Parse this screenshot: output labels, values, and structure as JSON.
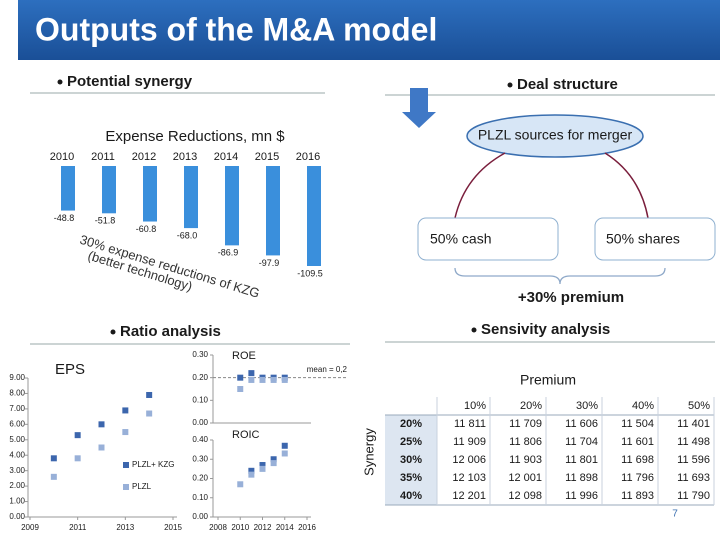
{
  "title": "Outputs of the M&A model",
  "sections": {
    "synergy": "Potential synergy",
    "deal": "Deal structure",
    "ratio": "Ratio analysis",
    "sensitivity": "Sensivity analysis"
  },
  "chart_data": [
    {
      "type": "bar",
      "title": "Expense Reductions, mn $",
      "categories": [
        "2010",
        "2011",
        "2012",
        "2013",
        "2014",
        "2015",
        "2016"
      ],
      "values": [
        -48.8,
        -51.8,
        -60.8,
        -68.0,
        -86.9,
        -97.9,
        -109.5
      ],
      "value_labels": [
        "-48.8",
        "-51.8",
        "-60.8",
        "-68.0",
        "-86.9",
        "-97.9",
        "-109.5"
      ],
      "color": "#3a8fdc",
      "annotations": [
        "30% expense reductions of KZG",
        "(better technology)"
      ]
    },
    {
      "type": "scatter",
      "title": "EPS",
      "xlim": [
        2009,
        2015
      ],
      "xticks": [
        2009,
        2011,
        2013,
        2015
      ],
      "ylim": [
        0,
        9
      ],
      "yticks": [
        {
          "value": 0,
          "label": "0.00"
        },
        {
          "value": 1,
          "label": "1.00"
        },
        {
          "value": 2,
          "label": "2.00"
        },
        {
          "value": 3,
          "label": "3.00"
        },
        {
          "value": 4,
          "label": "4.00"
        },
        {
          "value": 5,
          "label": "5.00"
        },
        {
          "value": 6,
          "label": "6.00"
        },
        {
          "value": 7,
          "label": "7.00"
        },
        {
          "value": 8,
          "label": "8.00"
        },
        {
          "value": 9,
          "label": "9.00"
        }
      ],
      "legend": "right",
      "series": [
        {
          "name": "PLZL+ KZG",
          "color": "#3c66ad",
          "x": [
            2010,
            2011,
            2012,
            2013,
            2014
          ],
          "values": [
            3.8,
            5.3,
            6.0,
            6.9,
            7.9
          ]
        },
        {
          "name": "PLZL",
          "color": "#98b0d8",
          "x": [
            2010,
            2011,
            2012,
            2013,
            2014
          ],
          "values": [
            2.6,
            3.8,
            4.5,
            5.5,
            6.7
          ]
        }
      ]
    },
    {
      "type": "scatter",
      "title": "ROE",
      "xlim": [
        2008,
        2016
      ],
      "ylim": [
        0,
        0.3
      ],
      "yticks": [
        {
          "value": 0,
          "label": "0.00"
        },
        {
          "value": 0.1,
          "label": "0.10"
        },
        {
          "value": 0.2,
          "label": "0.20"
        },
        {
          "value": 0.3,
          "label": "0.30"
        }
      ],
      "mean_line": {
        "value": 0.2,
        "label": "mean = 0,2"
      },
      "series": [
        {
          "color": "#3c66ad",
          "x": [
            2010,
            2011,
            2012,
            2013,
            2014
          ],
          "values": [
            0.2,
            0.22,
            0.2,
            0.2,
            0.2
          ]
        },
        {
          "color": "#98b0d8",
          "x": [
            2010,
            2011,
            2012,
            2013,
            2014
          ],
          "values": [
            0.15,
            0.19,
            0.19,
            0.19,
            0.19
          ]
        }
      ]
    },
    {
      "type": "scatter",
      "title": "ROIC",
      "xlim": [
        2008,
        2016
      ],
      "xticks": [
        2008,
        2010,
        2012,
        2014,
        2016
      ],
      "ylim": [
        0,
        0.4
      ],
      "yticks": [
        {
          "value": 0,
          "label": "0.00"
        },
        {
          "value": 0.1,
          "label": "0.10"
        },
        {
          "value": 0.2,
          "label": "0.20"
        },
        {
          "value": 0.3,
          "label": "0.30"
        },
        {
          "value": 0.4,
          "label": "0.40"
        }
      ],
      "series": [
        {
          "color": "#3c66ad",
          "x": [
            2011,
            2012,
            2013,
            2014
          ],
          "values": [
            0.24,
            0.27,
            0.3,
            0.37
          ]
        },
        {
          "color": "#98b0d8",
          "x": [
            2010,
            2011,
            2012,
            2013,
            2014
          ],
          "values": [
            0.17,
            0.22,
            0.25,
            0.28,
            0.33
          ]
        }
      ]
    }
  ],
  "diagram": {
    "source": "PLZL sources for merger",
    "cash": "50% cash",
    "shares": "50% shares",
    "premium": "+30% premium"
  },
  "table": {
    "column_title": "Premium",
    "row_title": "Synergy",
    "columns": [
      "10%",
      "20%",
      "30%",
      "40%",
      "50%"
    ],
    "rows": [
      {
        "label": "20%",
        "cells": [
          "11 811",
          "11 709",
          "11 606",
          "11 504",
          "11 401"
        ]
      },
      {
        "label": "25%",
        "cells": [
          "11 909",
          "11 806",
          "11 704",
          "11 601",
          "11 498"
        ]
      },
      {
        "label": "30%",
        "cells": [
          "12 006",
          "11 903",
          "11 801",
          "11 698",
          "11 596"
        ]
      },
      {
        "label": "35%",
        "cells": [
          "12 103",
          "12 001",
          "11 898",
          "11 796",
          "11 693"
        ]
      },
      {
        "label": "40%",
        "cells": [
          "12 201",
          "12 098",
          "11 996",
          "11 893",
          "11 790"
        ]
      }
    ]
  },
  "page_number": "7"
}
